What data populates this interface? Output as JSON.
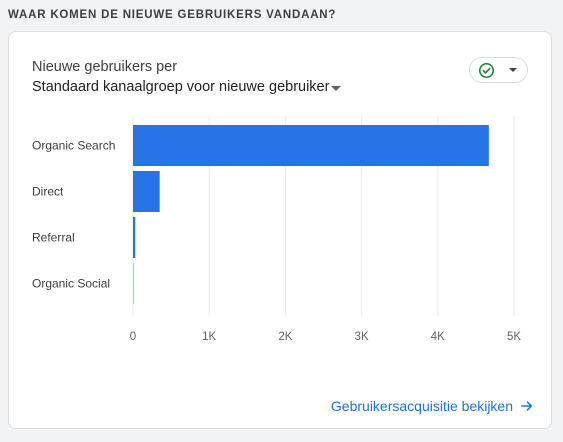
{
  "section_title": "WAAR KOMEN DE NIEUWE GEBRUIKERS VANDAAN?",
  "card": {
    "subtitle": "Nieuwe gebruikers per",
    "dimension": "Standaard kanaalgroep voor nieuwe gebruiker",
    "footer_link": "Gebruikersacquisitie bekijken",
    "status_icon": "check-circle-icon",
    "accent_color": "#1a73e8"
  },
  "chart_data": {
    "type": "bar",
    "orientation": "horizontal",
    "categories": [
      "Organic Search",
      "Direct",
      "Referral",
      "Organic Social"
    ],
    "values": [
      4670,
      350,
      30,
      5
    ],
    "xlim": [
      0,
      5000
    ],
    "xticks": [
      0,
      1000,
      2000,
      3000,
      4000,
      5000
    ],
    "xtick_labels": [
      "0",
      "1K",
      "2K",
      "3K",
      "4K",
      "5K"
    ],
    "grid": true,
    "bar_color": "#2673e6"
  }
}
